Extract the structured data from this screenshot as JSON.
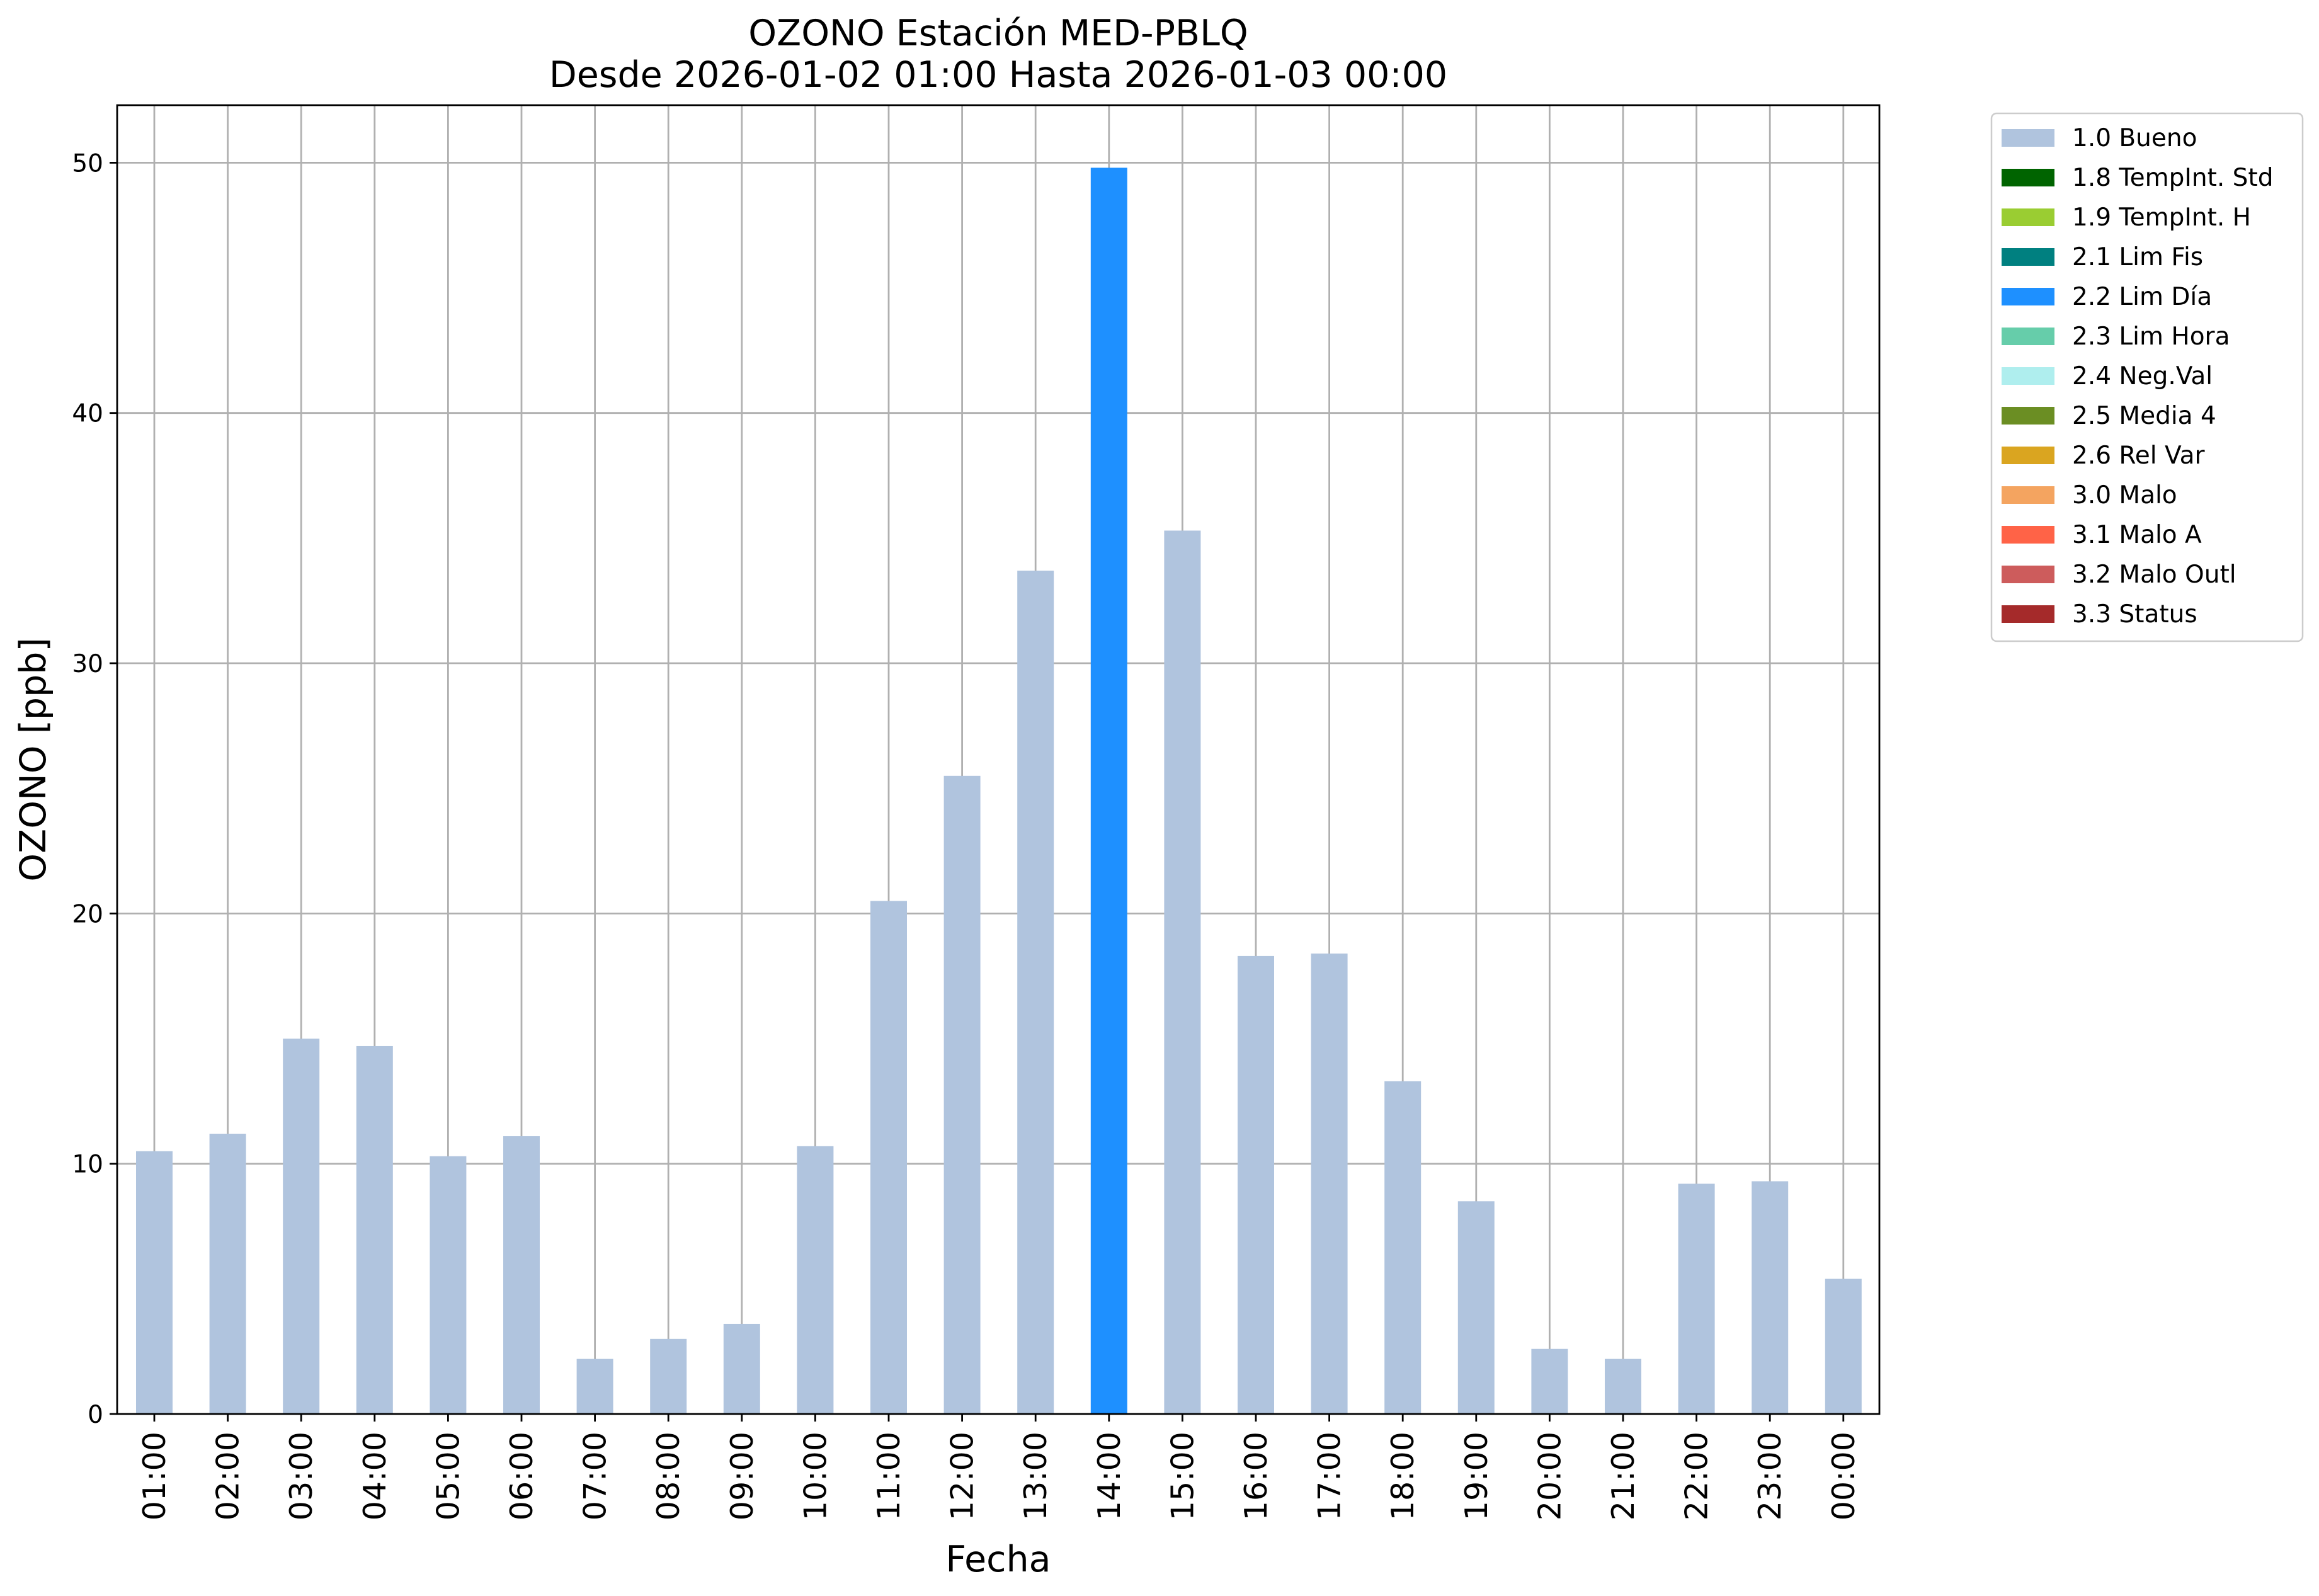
{
  "chart_data": {
    "type": "bar",
    "title": "OZONO Estación MED-PBLQ",
    "subtitle": "Desde 2026-01-02 01:00 Hasta 2026-01-03 00:00",
    "xlabel": "Fecha",
    "ylabel": "OZONO [ppb]",
    "ylim": [
      0,
      52.3
    ],
    "yticks": [
      0,
      10,
      20,
      30,
      40,
      50
    ],
    "grid": true,
    "legend_position": "outside-right-top",
    "categories": [
      "01:00",
      "02:00",
      "03:00",
      "04:00",
      "05:00",
      "06:00",
      "07:00",
      "08:00",
      "09:00",
      "10:00",
      "11:00",
      "12:00",
      "13:00",
      "14:00",
      "15:00",
      "16:00",
      "17:00",
      "18:00",
      "19:00",
      "20:00",
      "21:00",
      "22:00",
      "23:00",
      "00:00"
    ],
    "values": [
      10.5,
      11.2,
      15.0,
      14.7,
      10.3,
      11.1,
      2.2,
      3.0,
      3.6,
      10.7,
      20.5,
      25.5,
      33.7,
      49.8,
      35.3,
      18.3,
      18.4,
      13.3,
      8.5,
      2.6,
      2.2,
      9.2,
      9.3,
      5.4
    ],
    "flags": [
      "1.0 Bueno",
      "1.0 Bueno",
      "1.0 Bueno",
      "1.0 Bueno",
      "1.0 Bueno",
      "1.0 Bueno",
      "1.0 Bueno",
      "1.0 Bueno",
      "1.0 Bueno",
      "1.0 Bueno",
      "1.0 Bueno",
      "1.0 Bueno",
      "1.0 Bueno",
      "2.2 Lim Día",
      "1.0 Bueno",
      "1.0 Bueno",
      "1.0 Bueno",
      "1.0 Bueno",
      "1.0 Bueno",
      "1.0 Bueno",
      "1.0 Bueno",
      "1.0 Bueno",
      "1.0 Bueno",
      "1.0 Bueno"
    ],
    "legend": [
      {
        "label": "1.0 Bueno",
        "color": "#b0c4de"
      },
      {
        "label": "1.8 TempInt. Std",
        "color": "#006400"
      },
      {
        "label": "1.9 TempInt. H",
        "color": "#9acd32"
      },
      {
        "label": "2.1 Lim Fis",
        "color": "#008080"
      },
      {
        "label": "2.2 Lim Día",
        "color": "#1e90ff"
      },
      {
        "label": "2.3 Lim Hora",
        "color": "#66cdaa"
      },
      {
        "label": "2.4 Neg.Val",
        "color": "#afeeee"
      },
      {
        "label": "2.5 Media 4",
        "color": "#6b8e23"
      },
      {
        "label": "2.6 Rel Var",
        "color": "#daa520"
      },
      {
        "label": "3.0 Malo",
        "color": "#f4a460"
      },
      {
        "label": "3.1 Malo A",
        "color": "#ff6347"
      },
      {
        "label": "3.2 Malo Outl",
        "color": "#cd5c5c"
      },
      {
        "label": "3.3 Status",
        "color": "#a52a2a"
      }
    ]
  }
}
